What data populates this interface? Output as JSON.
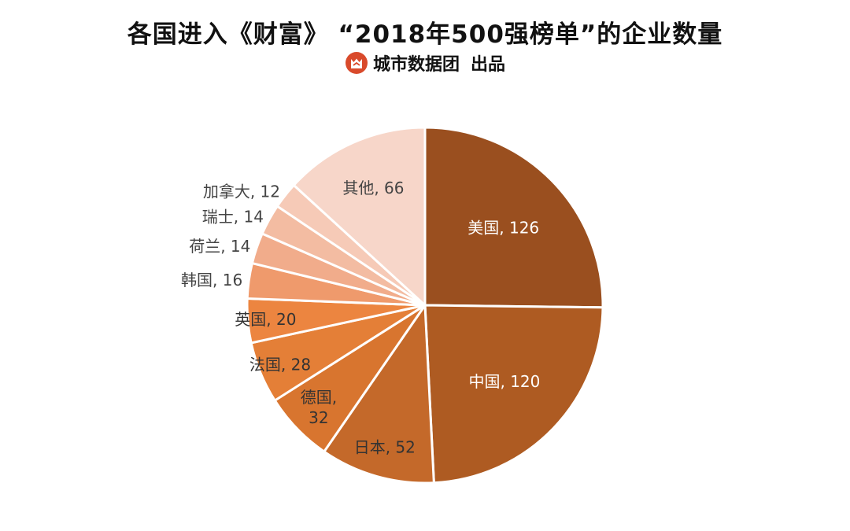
{
  "header": {
    "title": "各国进入《财富》 “2018年500强榜单”的企业数量",
    "brand": "城市数据团",
    "brand_suffix": "出品",
    "logo_icon": "cat-logo-icon"
  },
  "chart_data": {
    "type": "pie",
    "title": "各国进入《财富》 “2018年500强榜单”的企业数量",
    "start_angle": "12 o'clock",
    "direction": "clockwise",
    "slices": [
      {
        "name": "美国",
        "value": 126,
        "label": "美国, 126",
        "color": "#9A4F1F",
        "text_color": "#ffffff"
      },
      {
        "name": "中国",
        "value": 120,
        "label": "中国, 120",
        "color": "#AE5B22",
        "text_color": "#ffffff"
      },
      {
        "name": "日本",
        "value": 52,
        "label": "日本, 52",
        "color": "#C4692A",
        "text_color": "#333333"
      },
      {
        "name": "德国",
        "value": 32,
        "label_lines": [
          "德国,",
          "32"
        ],
        "color": "#D8752F",
        "text_color": "#333333"
      },
      {
        "name": "法国",
        "value": 28,
        "label": "法国, 28",
        "color": "#E47F37",
        "text_color": "#333333"
      },
      {
        "name": "英国",
        "value": 20,
        "label": "英国, 20",
        "color": "#EC8540",
        "text_color": "#333333"
      },
      {
        "name": "韩国",
        "value": 16,
        "label": "韩国, 16",
        "color": "#EF9A6C",
        "text_color": "#444444"
      },
      {
        "name": "荷兰",
        "value": 14,
        "label": "荷兰, 14",
        "color": "#F1AC8B",
        "text_color": "#444444"
      },
      {
        "name": "瑞士",
        "value": 14,
        "label": "瑞士, 14",
        "color": "#F3BCA2",
        "text_color": "#444444"
      },
      {
        "name": "加拿大",
        "value": 12,
        "label": "加拿大, 12",
        "color": "#F6CAB7",
        "text_color": "#444444"
      },
      {
        "name": "其他",
        "value": 66,
        "label": "其他, 66",
        "color": "#F7D6C9",
        "text_color": "#444444"
      }
    ]
  }
}
